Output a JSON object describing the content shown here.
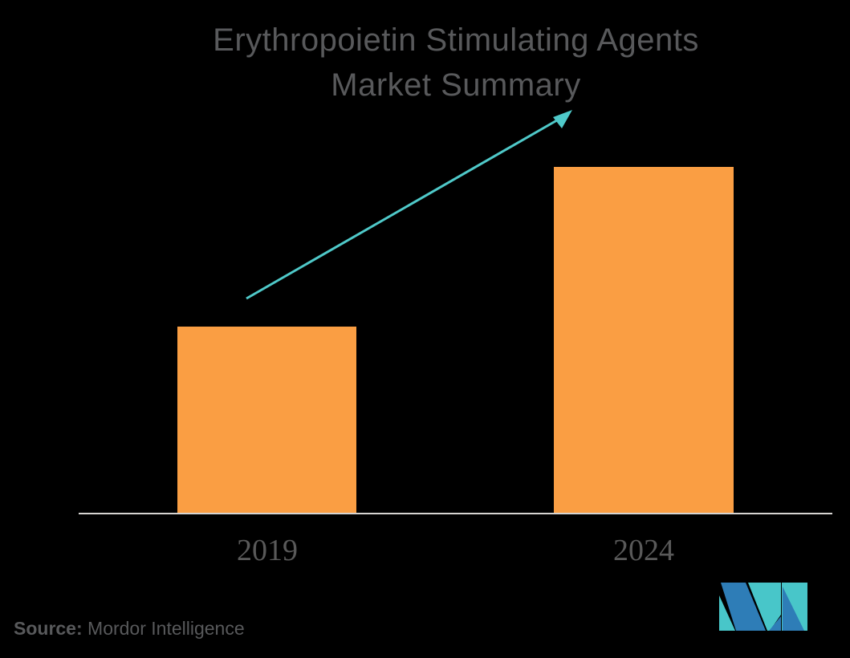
{
  "title": {
    "line1": "Erythropoietin Stimulating Agents",
    "line2": "Market Summary"
  },
  "chart_data": {
    "type": "bar",
    "categories": [
      "2019",
      "2024"
    ],
    "values": [
      54,
      100
    ],
    "values_note": "relative bar heights in % of tallest bar; chart displays no numeric y-axis",
    "title": "Erythropoietin Stimulating Agents Market Summary",
    "xlabel": "",
    "ylabel": "",
    "grid": false,
    "legend": false,
    "bar_color": "#FA9E43",
    "annotations": [
      "upward growth trend arrow from 2019 bar toward title"
    ]
  },
  "source": {
    "label": "Source:",
    "text": " Mordor Intelligence"
  },
  "logo": {
    "name": "Mordor Intelligence monogram"
  },
  "colors": {
    "background": "#000000",
    "title_text": "#58595B",
    "axis_label_text": "#595959",
    "bar_orange": "#FA9E43",
    "arrow_teal": "#4FC9C9",
    "axis_line": "#D6D4D2",
    "logo_blue": "#2E7DB7",
    "logo_teal": "#48C6C9",
    "source_text": "#58595B"
  }
}
